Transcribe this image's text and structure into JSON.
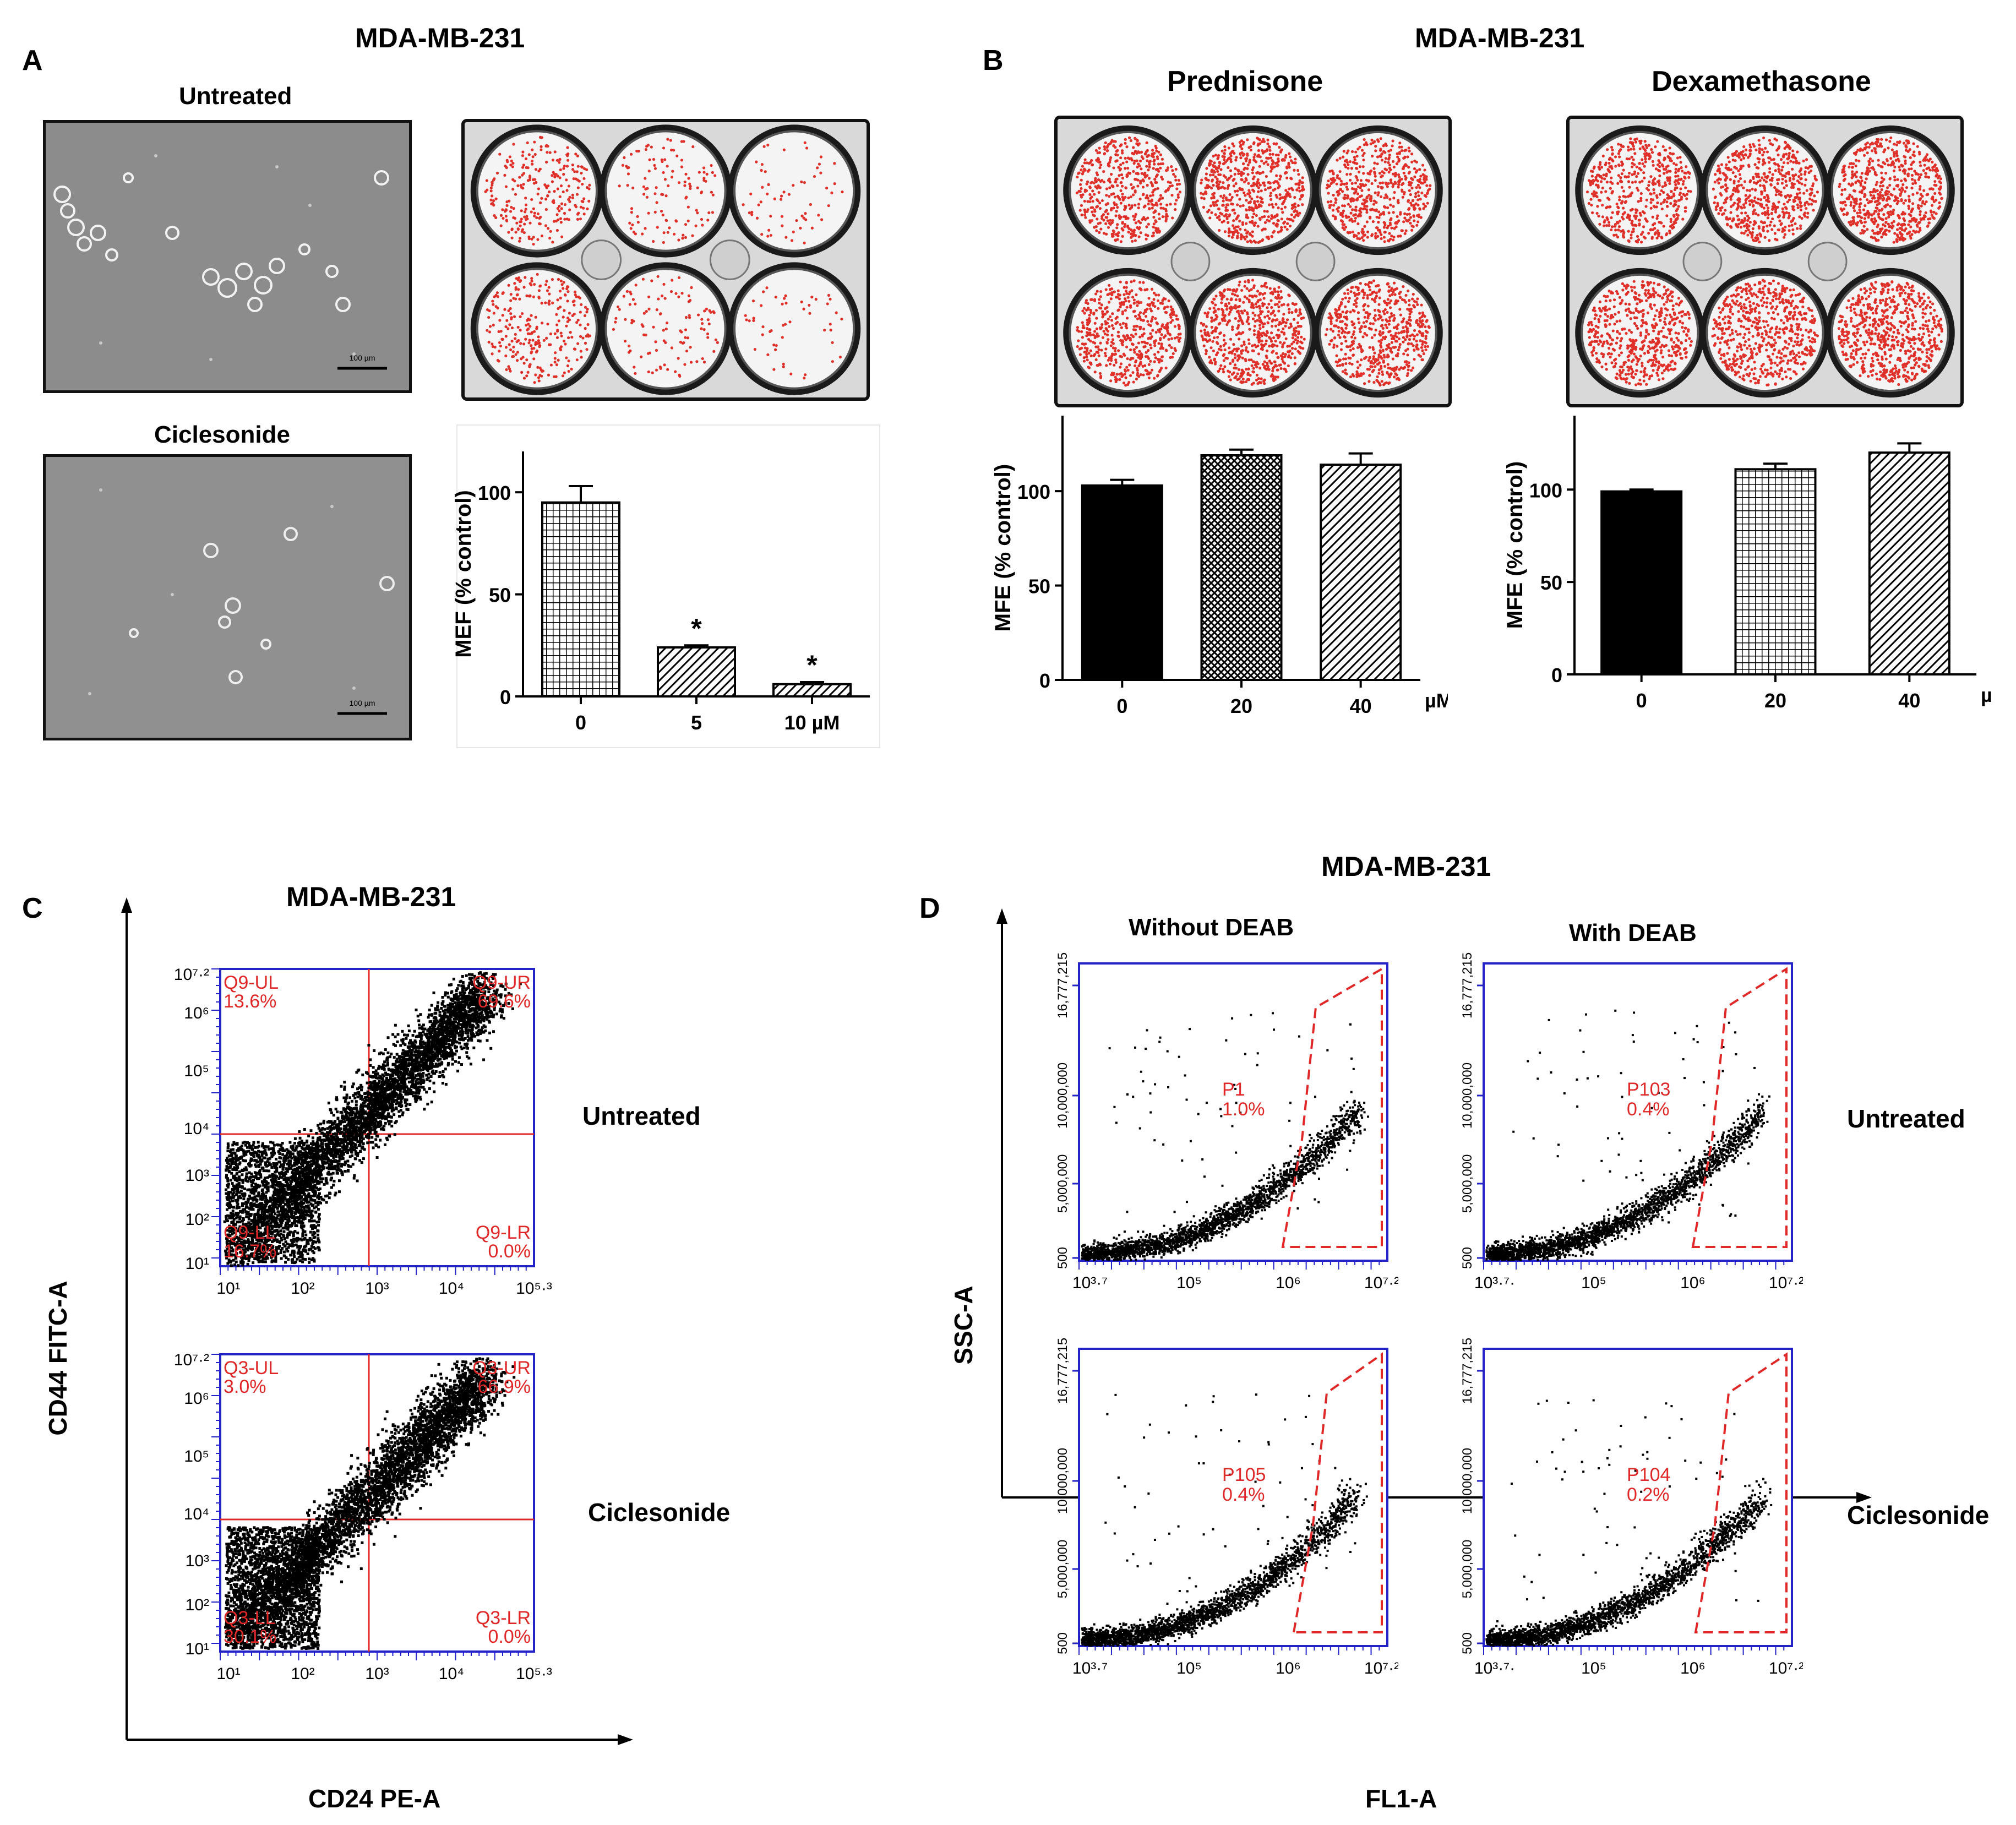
{
  "panels": {
    "A": {
      "letter": "A",
      "title": "MDA-MB-231",
      "image_labels": [
        "Untreated",
        "Ciclesonide"
      ],
      "scale_bar": "100 µm"
    },
    "B": {
      "letter": "B",
      "title": "MDA-MB-231",
      "subtitles": [
        "Prednisone",
        "Dexamethasone"
      ]
    },
    "C": {
      "letter": "C",
      "title": "MDA-MB-231",
      "xlabel": "CD24 PE-A",
      "ylabel": "CD44 FITC-A",
      "row_labels": [
        "Untreated",
        "Ciclesonide"
      ]
    },
    "D": {
      "letter": "D",
      "title": "MDA-MB-231",
      "col_labels": [
        "Without DEAB",
        "With DEAB"
      ],
      "row_labels": [
        "Untreated",
        "Ciclesonide"
      ],
      "xlabel": "FL1-A",
      "ylabel": "SSC-A"
    }
  },
  "colors": {
    "axis_blue": "#2323c8",
    "gate_red": "#e02828",
    "plate_dots": "#e0302a",
    "bar_fill": "#000000"
  },
  "chart_data": [
    {
      "id": "A-bar",
      "type": "bar",
      "categories": [
        "0",
        "5",
        "10 µM"
      ],
      "values": [
        95,
        24,
        6
      ],
      "errors": [
        8,
        1,
        1
      ],
      "significance": [
        "",
        "*",
        "*"
      ],
      "patterns": [
        "grid",
        "diag",
        "diag"
      ],
      "ylabel": "MEF (% control)",
      "ylim": [
        0,
        120
      ],
      "yticks": [
        "0",
        "50",
        "100"
      ],
      "ytick_values": [
        0,
        50,
        100
      ]
    },
    {
      "id": "B-prednisone",
      "type": "bar",
      "categories": [
        "0",
        "20",
        "40"
      ],
      "unit": "µM",
      "values": [
        103,
        119,
        114
      ],
      "errors": [
        3,
        3,
        6
      ],
      "patterns": [
        "solid",
        "crosshatch",
        "diag"
      ],
      "ylabel": "MFE (% control)",
      "ylim": [
        0,
        140
      ],
      "yticks": [
        "0",
        "50",
        "100"
      ],
      "ytick_values": [
        0,
        50,
        100
      ]
    },
    {
      "id": "B-dexamethasone",
      "type": "bar",
      "categories": [
        "0",
        "20",
        "40"
      ],
      "unit": "µM",
      "values": [
        99,
        111,
        120
      ],
      "errors": [
        1,
        3,
        5
      ],
      "patterns": [
        "solid",
        "grid",
        "diag"
      ],
      "ylabel": "MFE (% control)",
      "ylim": [
        0,
        140
      ],
      "yticks": [
        "0",
        "50",
        "100"
      ],
      "ytick_values": [
        0,
        50,
        100
      ]
    },
    {
      "id": "C-untreated",
      "type": "scatter",
      "yticks": [
        "10⁷·²",
        "10⁶",
        "10⁵",
        "10⁴",
        "10³",
        "10²",
        "10¹"
      ],
      "xticks": [
        "10¹",
        "10²",
        "10³",
        "10⁴",
        "10⁵·³"
      ],
      "quadrants": {
        "UL": "Q9-UL 13.6%",
        "UR": "Q9-UR 69.6%",
        "LL": "Q9-LL 16.7%",
        "LR": "Q9-LR 0.0%"
      }
    },
    {
      "id": "C-ciclesonide",
      "type": "scatter",
      "yticks": [
        "10⁷·²",
        "10⁶",
        "10⁵",
        "10⁴",
        "10³",
        "10²",
        "10¹"
      ],
      "xticks": [
        "10¹",
        "10²",
        "10³",
        "10⁴",
        "10⁵·³"
      ],
      "quadrants": {
        "UL": "Q3-UL 3.0%",
        "UR": "Q3-UR 66.9%",
        "LL": "Q3-LL 30.1%",
        "LR": "Q3-LR 0.0%"
      }
    },
    {
      "id": "D-untreated-without",
      "type": "scatter",
      "gate": {
        "name": "P1",
        "value": "1.0%"
      },
      "yticks": [
        "16,777,215",
        "10,000,000",
        "5,000,000",
        "500"
      ],
      "xticks": [
        "10³·⁷",
        "10⁵",
        "10⁶",
        "10⁷·²"
      ]
    },
    {
      "id": "D-untreated-with",
      "type": "scatter",
      "gate": {
        "name": "P103",
        "value": "0.4%"
      },
      "yticks": [
        "16,777,215",
        "10,000,000",
        "5,000,000",
        "500"
      ],
      "xticks": [
        "10³·⁷·",
        "10⁵",
        "10⁶",
        "10⁷·²"
      ]
    },
    {
      "id": "D-ciclesonide-without",
      "type": "scatter",
      "gate": {
        "name": "P105",
        "value": "0.4%"
      },
      "yticks": [
        "16,777,215",
        "10,000,000",
        "5,000,000",
        "500"
      ],
      "xticks": [
        "10³·⁷",
        "10⁵",
        "10⁶",
        "10⁷·²"
      ]
    },
    {
      "id": "D-ciclesonide-with",
      "type": "scatter",
      "gate": {
        "name": "P104",
        "value": "0.2%"
      },
      "yticks": [
        "16,777,215",
        "10,000,000",
        "5,000,000",
        "500"
      ],
      "xticks": [
        "10³·⁷·",
        "10⁵",
        "10⁶",
        "10⁷·²"
      ]
    }
  ]
}
